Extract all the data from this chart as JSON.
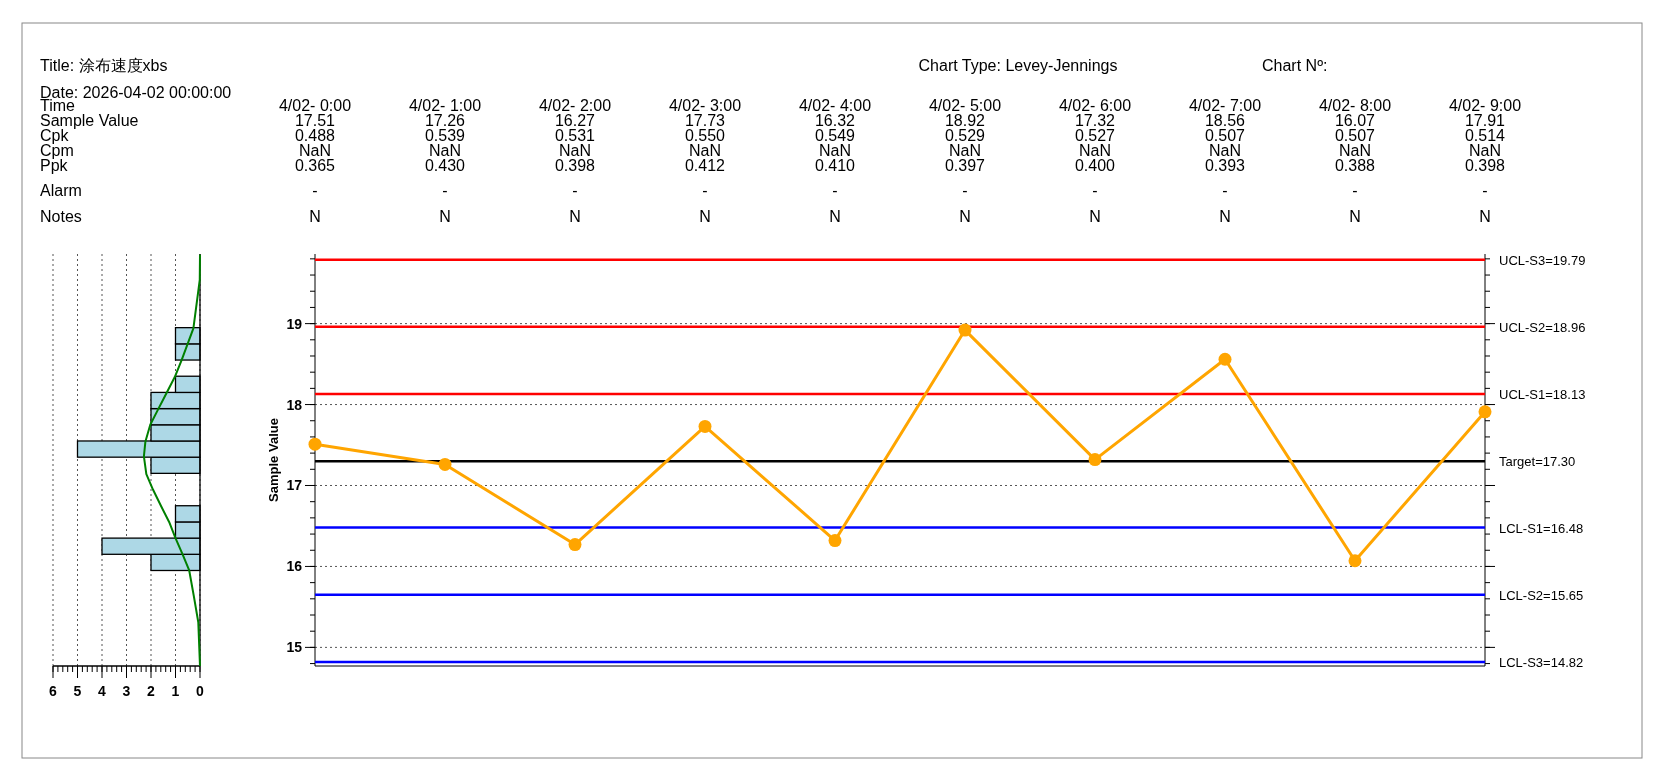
{
  "chart_data": [
    {
      "type": "other",
      "title": "Title: 涂布速度xbs",
      "subtitle": "Chart Type: Levey-Jennings",
      "annotations": [
        "Date: 2026-04-02 00:00:00",
        "Chart Nº:"
      ],
      "series": [
        {
          "name": "Time",
          "values": [
            null,
            null,
            null,
            null,
            null,
            null,
            null,
            null,
            null,
            null
          ],
          "value_labels": [
            "4/02- 0:00",
            "4/02- 1:00",
            "4/02- 2:00",
            "4/02- 3:00",
            "4/02- 4:00",
            "4/02- 5:00",
            "4/02- 6:00",
            "4/02- 7:00",
            "4/02- 8:00",
            "4/02- 9:00"
          ]
        },
        {
          "name": "Sample Value",
          "values": [
            null,
            null,
            null,
            null,
            null,
            null,
            null,
            null,
            null,
            null
          ],
          "value_labels": [
            "17.51",
            "17.26",
            "16.27",
            "17.73",
            "16.32",
            "18.92",
            "17.32",
            "18.56",
            "16.07",
            "17.91"
          ]
        },
        {
          "name": "Cpk",
          "values": [
            null,
            null,
            null,
            null,
            null,
            null,
            null,
            null,
            null,
            null
          ],
          "value_labels": [
            "0.488",
            "0.539",
            "0.531",
            "0.550",
            "0.549",
            "0.529",
            "0.527",
            "0.507",
            "0.507",
            "0.514"
          ]
        },
        {
          "name": "Cpm",
          "values": [
            null,
            null,
            null,
            null,
            null,
            null,
            null,
            null,
            null,
            null
          ],
          "value_labels": [
            "NaN",
            "NaN",
            "NaN",
            "NaN",
            "NaN",
            "NaN",
            "NaN",
            "NaN",
            "NaN",
            "NaN"
          ]
        },
        {
          "name": "Ppk",
          "values": [
            null,
            null,
            null,
            null,
            null,
            null,
            null,
            null,
            null,
            null
          ],
          "value_labels": [
            "0.365",
            "0.430",
            "0.398",
            "0.412",
            "0.410",
            "0.397",
            "0.400",
            "0.393",
            "0.388",
            "0.398"
          ]
        },
        {
          "name": "Alarm",
          "values": [
            null,
            null,
            null,
            null,
            null,
            null,
            null,
            null,
            null,
            null
          ],
          "value_labels": [
            "-",
            "-",
            "-",
            "-",
            "-",
            "-",
            "-",
            "-",
            "-",
            "-"
          ]
        },
        {
          "name": "Notes",
          "values": [
            null,
            null,
            null,
            null,
            null,
            null,
            null,
            null,
            null,
            null
          ],
          "value_labels": [
            "N",
            "N",
            "N",
            "N",
            "N",
            "N",
            "N",
            "N",
            "N",
            "N"
          ]
        }
      ]
    },
    {
      "type": "histogram",
      "orientation": "horizontal",
      "color": "#add8e6",
      "bins": [
        15.95,
        16.15,
        16.35,
        16.55,
        16.75,
        16.95,
        17.15,
        17.35,
        17.55,
        17.75,
        17.95,
        18.15,
        18.35,
        18.55,
        18.75,
        18.95
      ],
      "values": [
        2,
        4,
        1,
        1,
        0,
        0,
        2,
        5,
        2,
        2,
        2,
        1,
        0,
        1,
        1
      ],
      "series": [
        {
          "type": "line",
          "color": "#008000",
          "x": [
            14.77,
            15.31,
            15.63,
            15.95,
            16.15,
            16.35,
            16.55,
            16.74,
            16.95,
            17.14,
            17.36,
            17.54,
            17.75,
            17.94,
            18.14,
            18.34,
            18.55,
            18.94,
            19.54,
            19.85
          ],
          "values": [
            0,
            0.07,
            0.25,
            0.44,
            0.71,
            1.0,
            1.26,
            1.58,
            1.92,
            2.19,
            2.29,
            2.23,
            2.03,
            1.71,
            1.37,
            1.03,
            0.75,
            0.27,
            0.01,
            0
          ]
        }
      ],
      "xlim": [
        6,
        0
      ],
      "xticks": [
        6,
        5,
        4,
        3,
        2,
        1,
        0
      ],
      "ylim": [
        14.77,
        19.86
      ],
      "tick_labels": "x",
      "grid": "x"
    },
    {
      "type": "line",
      "ylabel": "Sample Value",
      "categories": [
        null,
        null,
        null,
        null,
        null,
        null,
        null,
        null,
        null,
        null
      ],
      "series": [
        {
          "color": "#ffa500",
          "values": [
            17.51,
            17.26,
            16.27,
            17.73,
            16.32,
            18.92,
            17.32,
            18.56,
            16.07,
            17.91
          ]
        }
      ],
      "marker": "circle",
      "line_style": "solid",
      "grid": "y",
      "ylim": [
        14.77,
        19.86
      ],
      "yticks": [
        15,
        16,
        17,
        18,
        19
      ],
      "ref_lines": [
        {
          "axis": "y",
          "value": 19.79,
          "label": "UCL-S3=19.79",
          "color": "#ff0000"
        },
        {
          "axis": "y",
          "value": 18.96,
          "label": "UCL-S2=18.96",
          "color": "#ff0000"
        },
        {
          "axis": "y",
          "value": 18.13,
          "label": "UCL-S1=18.13",
          "color": "#ff0000"
        },
        {
          "axis": "y",
          "value": 17.3,
          "label": "Target=17.30",
          "color": "#000000"
        },
        {
          "axis": "y",
          "value": 16.48,
          "label": "LCL-S1=16.48",
          "color": "#0000ff"
        },
        {
          "axis": "y",
          "value": 15.65,
          "label": "LCL-S2=15.65",
          "color": "#0000ff"
        },
        {
          "axis": "y",
          "value": 14.82,
          "label": "LCL-S3=14.82",
          "color": "#0000ff"
        }
      ]
    }
  ]
}
